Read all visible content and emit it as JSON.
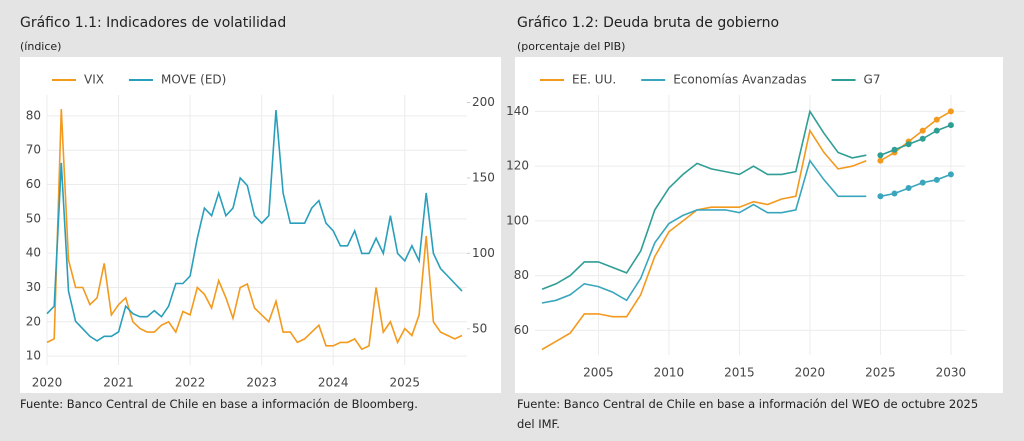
{
  "chart_data": [
    {
      "type": "line",
      "title": "Gráfico 1.1: Indicadores de volatilidad",
      "subtitle": "(índice)",
      "note": "Fuente: Banco Central de Chile en base a información de Bloomberg.",
      "x": [
        2020.0,
        2020.1,
        2020.2,
        2020.3,
        2020.4,
        2020.5,
        2020.6,
        2020.7,
        2020.8,
        2020.9,
        2021.0,
        2021.1,
        2021.2,
        2021.3,
        2021.4,
        2021.5,
        2021.6,
        2021.7,
        2021.8,
        2021.9,
        2022.0,
        2022.1,
        2022.2,
        2022.3,
        2022.4,
        2022.5,
        2022.6,
        2022.7,
        2022.8,
        2022.9,
        2023.0,
        2023.1,
        2023.2,
        2023.3,
        2023.4,
        2023.5,
        2023.6,
        2023.7,
        2023.8,
        2023.9,
        2024.0,
        2024.1,
        2024.2,
        2024.3,
        2024.4,
        2024.5,
        2024.6,
        2024.7,
        2024.8,
        2024.9,
        2025.0,
        2025.1,
        2025.2,
        2025.3,
        2025.4,
        2025.5,
        2025.6,
        2025.7,
        2025.8
      ],
      "series": [
        {
          "name": "VIX",
          "color": "#f39a1e",
          "values": [
            14,
            15,
            82,
            38,
            30,
            30,
            25,
            27,
            37,
            22,
            25,
            27,
            20,
            18,
            17,
            17,
            19,
            20,
            17,
            23,
            22,
            30,
            28,
            24,
            32,
            27,
            21,
            30,
            31,
            24,
            22,
            20,
            26,
            17,
            17,
            14,
            15,
            17,
            19,
            13,
            13,
            14,
            14,
            15,
            12,
            13,
            30,
            17,
            20,
            14,
            18,
            16,
            22,
            45,
            20,
            17,
            16,
            15,
            16
          ]
        },
        {
          "name": "MOVE (ED)",
          "color": "#2a9fbc",
          "axis": "y2",
          "values": [
            60,
            65,
            160,
            75,
            55,
            50,
            45,
            42,
            45,
            45,
            48,
            65,
            60,
            58,
            58,
            62,
            58,
            65,
            80,
            80,
            85,
            110,
            130,
            125,
            140,
            125,
            130,
            150,
            145,
            125,
            120,
            125,
            195,
            140,
            120,
            120,
            120,
            130,
            135,
            120,
            115,
            105,
            105,
            115,
            100,
            100,
            110,
            100,
            125,
            100,
            95,
            105,
            95,
            140,
            100,
            90,
            85,
            80,
            75
          ]
        }
      ],
      "xlim": [
        2020,
        2025.87
      ],
      "xticks": [
        2020,
        2021,
        2022,
        2023,
        2024,
        2025
      ],
      "ylim": [
        7.4,
        86.1
      ],
      "yticks": [
        10,
        20,
        30,
        40,
        50,
        60,
        70,
        80
      ],
      "y2lim": [
        26,
        205
      ],
      "y2ticks": [
        50,
        100,
        150,
        200
      ],
      "grid": true
    },
    {
      "type": "line",
      "title": "Gráfico 1.2: Deuda bruta de gobierno",
      "subtitle": "(porcentaje del PIB)",
      "note": "Fuente: Banco Central de Chile en base a información del WEO de octubre 2025 del IMF.",
      "x": [
        2001,
        2002,
        2003,
        2004,
        2005,
        2006,
        2007,
        2008,
        2009,
        2010,
        2011,
        2012,
        2013,
        2014,
        2015,
        2016,
        2017,
        2018,
        2019,
        2020,
        2021,
        2022,
        2023,
        2024
      ],
      "series": [
        {
          "name": "EE. UU.",
          "color": "#f39a1e",
          "values": [
            53,
            56,
            59,
            66,
            66,
            65,
            65,
            73,
            87,
            96,
            100,
            104,
            105,
            105,
            105,
            107,
            106,
            108,
            109,
            133,
            125,
            119,
            120,
            122
          ]
        },
        {
          "name": "Economías Avanzadas",
          "color": "#3aa6bd",
          "values": [
            70,
            71,
            73,
            77,
            76,
            74,
            71,
            79,
            92,
            99,
            102,
            104,
            104,
            104,
            103,
            106,
            103,
            103,
            104,
            122,
            115,
            109,
            109,
            109
          ]
        },
        {
          "name": "G7",
          "color": "#2f9e95",
          "values": [
            75,
            77,
            80,
            85,
            85,
            83,
            81,
            89,
            104,
            112,
            117,
            121,
            119,
            118,
            117,
            120,
            117,
            117,
            118,
            140,
            132,
            125,
            123,
            124
          ]
        }
      ],
      "x_projection": [
        2025,
        2026,
        2027,
        2028,
        2029,
        2030
      ],
      "projection_series": [
        {
          "color": "#f39a1e",
          "values": [
            122,
            125,
            129,
            133,
            137,
            140
          ]
        },
        {
          "color": "#3aa6bd",
          "values": [
            109,
            110,
            112,
            114,
            115,
            117
          ]
        },
        {
          "color": "#2f9e95",
          "values": [
            124,
            126,
            128,
            130,
            133,
            135
          ]
        }
      ],
      "xlim": [
        2000.5,
        2031
      ],
      "xticks": [
        2005,
        2010,
        2015,
        2020,
        2025,
        2030
      ],
      "ylim": [
        51,
        146
      ],
      "yticks": [
        60,
        80,
        100,
        120,
        140
      ],
      "grid": true
    }
  ]
}
